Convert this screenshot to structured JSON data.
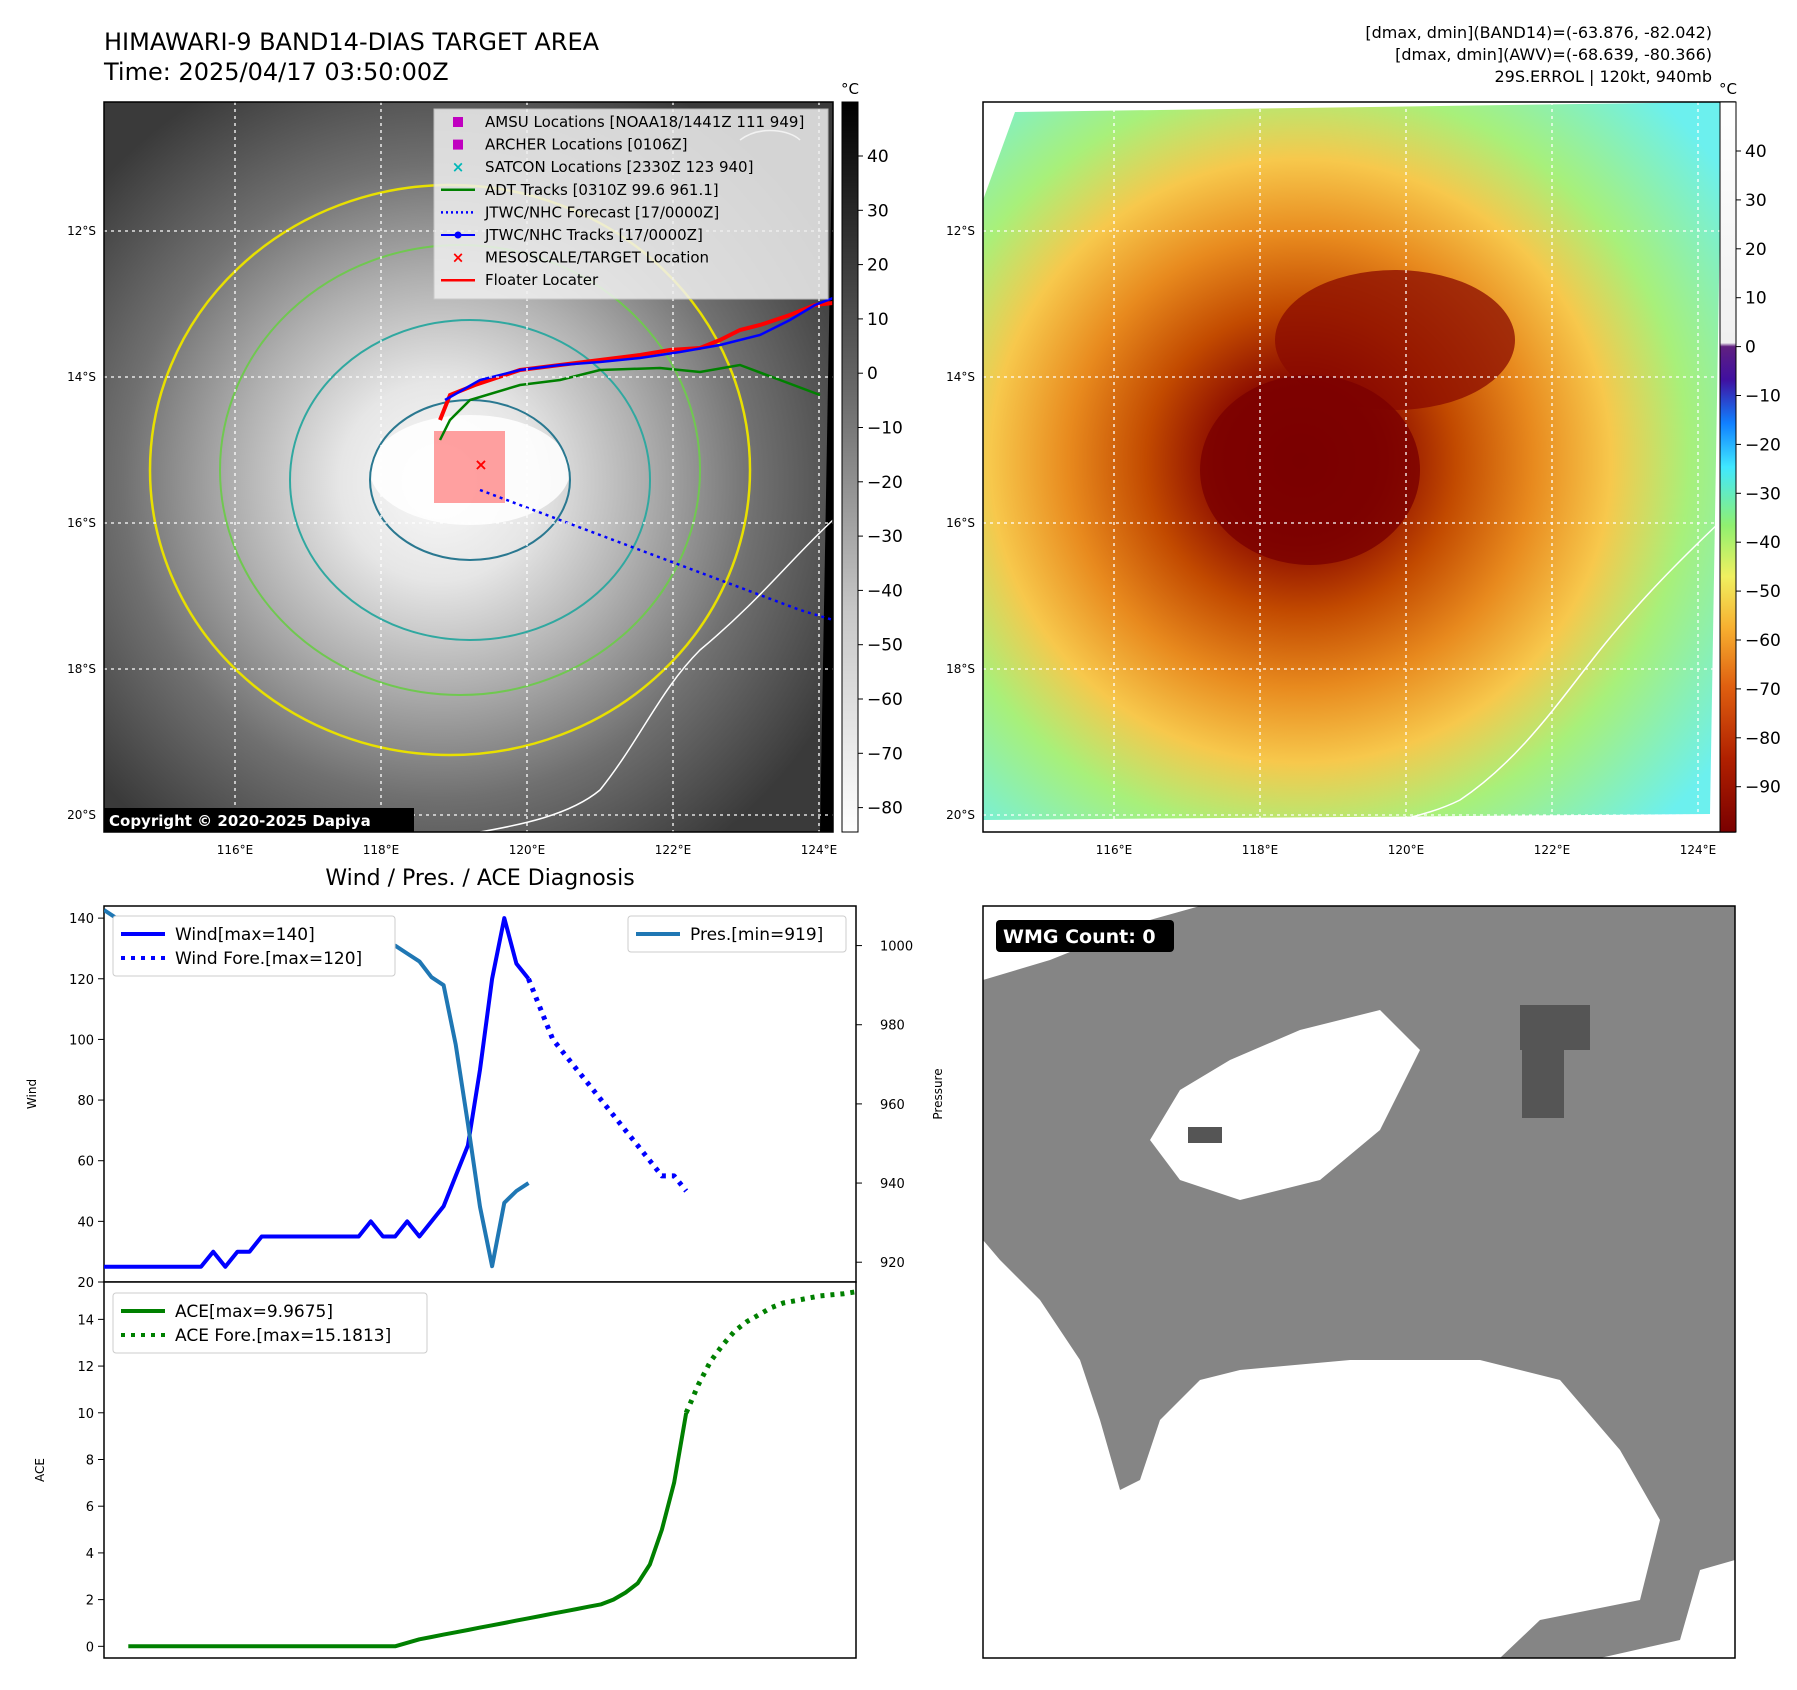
{
  "header": {
    "title_line1": "HIMAWARI-9 BAND14-DIAS TARGET AREA",
    "title_line2": "Time: 2025/04/17 03:50:00Z",
    "stats_line1": "[dmax, dmin](BAND14)=(-63.876, -82.042)",
    "stats_line2": "[dmax, dmin](AWV)=(-68.639, -80.366)",
    "stats_line3": "29S.ERROL | 120kt, 940mb"
  },
  "copyright": "Copyright © 2020-2025 Dapiya",
  "map": {
    "lon_ticks": [
      "116°E",
      "118°E",
      "120°E",
      "122°E",
      "124°E"
    ],
    "lat_ticks": [
      "12°S",
      "14°S",
      "16°S",
      "18°S",
      "20°S"
    ]
  },
  "colorbar_left": {
    "unit": "°C",
    "ticks": [
      "40",
      "30",
      "20",
      "10",
      "0",
      "−10",
      "−20",
      "−30",
      "−40",
      "−50",
      "−60",
      "−70",
      "−80"
    ]
  },
  "colorbar_right": {
    "unit": "°C",
    "ticks": [
      "40",
      "30",
      "20",
      "10",
      "0",
      "−10",
      "−20",
      "−30",
      "−40",
      "−50",
      "−60",
      "−70",
      "−80",
      "−90"
    ]
  },
  "legend_map": [
    {
      "label": "AMSU Locations [NOAA18/1441Z 111 949]",
      "marker": "square",
      "color": "#c000c0"
    },
    {
      "label": "ARCHER Locations [0106Z]",
      "marker": "square",
      "color": "#c000c0"
    },
    {
      "label": "SATCON Locations [2330Z 123 940]",
      "marker": "x",
      "color": "#00b8b8"
    },
    {
      "label": "ADT Tracks [0310Z 99.6 961.1]",
      "marker": "line",
      "color": "#008000"
    },
    {
      "label": "JTWC/NHC Forecast [17/0000Z]",
      "marker": "dotted",
      "color": "#0000ff"
    },
    {
      "label": "JTWC/NHC Tracks [17/0000Z]",
      "marker": "line-dot",
      "color": "#0000ff"
    },
    {
      "label": "MESOSCALE/TARGET Location",
      "marker": "x",
      "color": "#ff0000"
    },
    {
      "label": "Floater Locater",
      "marker": "line",
      "color": "#ff0000"
    }
  ],
  "wmg": {
    "label": "WMG Count: 0"
  },
  "chart_data": [
    {
      "type": "line",
      "title": "Wind / Pres. / ACE Diagnosis",
      "ylabel": "Wind",
      "ylim": [
        20,
        144
      ],
      "y_ticks": [
        20,
        40,
        60,
        80,
        100,
        120,
        140
      ],
      "xlim": [
        0,
        62
      ],
      "series": [
        {
          "name": "Wind[max=140]",
          "axis": "left",
          "color": "#0000ff",
          "style": "solid",
          "x": [
            0,
            2,
            4,
            6,
            8,
            9,
            10,
            11,
            12,
            13,
            14,
            15,
            16,
            17,
            18,
            19,
            20,
            21,
            22,
            23,
            24,
            25,
            26,
            27,
            28,
            29,
            30,
            31,
            32,
            33,
            34,
            35,
            36,
            37
          ],
          "y": [
            25,
            25,
            25,
            25,
            25,
            30,
            25,
            30,
            30,
            35,
            35,
            35,
            35,
            35,
            35,
            35,
            35,
            35,
            40,
            35,
            35,
            40,
            35,
            40,
            45,
            55,
            65,
            90,
            120,
            140,
            125,
            120,
            null,
            null
          ]
        },
        {
          "name": "Wind Fore.[max=120]",
          "axis": "left",
          "color": "#0000ff",
          "style": "dotted",
          "x": [
            35,
            36,
            37,
            38,
            39,
            40,
            41,
            42,
            43,
            44,
            45,
            46,
            47,
            48
          ],
          "y": [
            120,
            110,
            100,
            95,
            90,
            85,
            80,
            75,
            70,
            65,
            60,
            55,
            55,
            50
          ]
        },
        {
          "name": "Pres.[min=919]",
          "axis": "right",
          "color": "#1f77b4",
          "style": "solid",
          "x": [
            0,
            1,
            2,
            3,
            4,
            5,
            6,
            7,
            8,
            9,
            10,
            11,
            12,
            13,
            14,
            15,
            16,
            17,
            18,
            19,
            20,
            21,
            22,
            23,
            24,
            25,
            26,
            27,
            28,
            29,
            30,
            31,
            32,
            33,
            34,
            35
          ],
          "y": [
            1009,
            1007,
            1007,
            1006,
            1006,
            1003,
            1002,
            1001,
            1002,
            1001,
            1001,
            1000,
            1000,
            1000,
            1000,
            1000,
            1000,
            1000,
            1000,
            1000,
            1000,
            1000,
            1000,
            999,
            1000,
            998,
            996,
            992,
            990,
            975,
            955,
            934,
            919,
            935,
            938,
            940
          ]
        }
      ],
      "y2label": "Pressure",
      "y2lim": [
        915,
        1010
      ],
      "y2_ticks": [
        920,
        940,
        960,
        980,
        1000
      ]
    },
    {
      "type": "line",
      "ylabel": "ACE",
      "ylim": [
        -0.5,
        15.6
      ],
      "y_ticks": [
        0,
        2,
        4,
        6,
        8,
        10,
        12,
        14
      ],
      "xlim": [
        0,
        62
      ],
      "series": [
        {
          "name": "ACE[max=9.9675]",
          "color": "#008000",
          "style": "solid",
          "x": [
            2,
            10,
            12,
            14,
            16,
            18,
            20,
            22,
            24,
            26,
            27,
            28,
            29,
            30,
            31,
            32,
            33,
            34,
            35,
            36,
            37,
            38,
            39,
            40,
            41,
            42,
            43,
            44,
            45,
            46,
            47,
            48
          ],
          "y": [
            0,
            0,
            0,
            0,
            0,
            0,
            0,
            0,
            0,
            0.3,
            0.4,
            0.5,
            0.6,
            0.7,
            0.8,
            0.9,
            1.0,
            1.1,
            1.2,
            1.3,
            1.4,
            1.5,
            1.6,
            1.7,
            1.8,
            2.0,
            2.3,
            2.7,
            3.5,
            5.0,
            7.0,
            10.0
          ]
        },
        {
          "name": "ACE Fore.[max=15.1813]",
          "color": "#008000",
          "style": "dotted",
          "x": [
            48,
            49,
            50,
            51,
            52,
            53,
            54,
            55,
            56,
            57,
            58,
            59,
            60,
            61,
            62
          ],
          "y": [
            10.0,
            11.2,
            12.2,
            12.9,
            13.5,
            13.9,
            14.2,
            14.5,
            14.7,
            14.8,
            14.9,
            15.0,
            15.05,
            15.1,
            15.18
          ]
        }
      ]
    }
  ]
}
